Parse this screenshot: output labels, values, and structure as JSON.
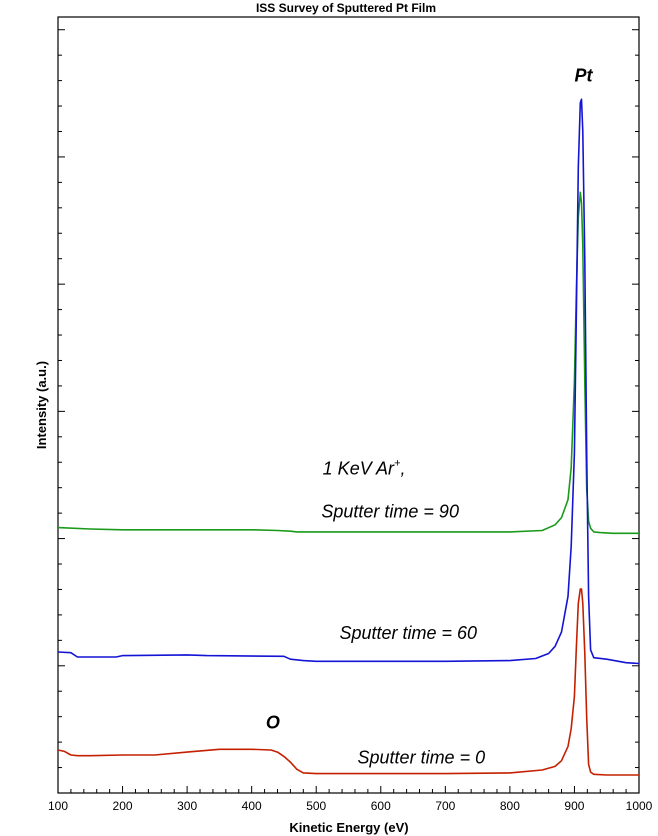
{
  "chart_data": {
    "type": "line",
    "title": "ISS Survey of Sputtered Pt Film",
    "xlabel": "Kinetic Energy (eV)",
    "ylabel": "Intensity (a.u.)",
    "xlim": [
      100,
      1000
    ],
    "ylim": [
      0,
      100
    ],
    "xticks": [
      "100",
      "200",
      "300",
      "400",
      "500",
      "600",
      "700",
      "800",
      "900",
      "1000"
    ],
    "grid": false,
    "series": [
      {
        "color": "#1a9a1a",
        "x": [
          100,
          150,
          200,
          300,
          400,
          440,
          460,
          470,
          480,
          600,
          700,
          800,
          850,
          870,
          880,
          890,
          895,
          900,
          903,
          906,
          909,
          911,
          913,
          916,
          919,
          922,
          925,
          930,
          940,
          960,
          1000
        ],
        "y": [
          34.6,
          34.4,
          34.3,
          34.3,
          34.3,
          34.2,
          34.1,
          34.0,
          34.0,
          34.0,
          34.0,
          34.0,
          34.2,
          35.0,
          36.0,
          38.5,
          43.0,
          55.0,
          68.0,
          78.0,
          81.5,
          80.0,
          74.0,
          55.0,
          40.0,
          35.5,
          34.5,
          34.0,
          33.9,
          33.8,
          33.8
        ]
      },
      {
        "color": "#1414d4",
        "x": [
          100,
          120,
          130,
          190,
          200,
          300,
          330,
          450,
          460,
          480,
          500,
          600,
          700,
          800,
          840,
          860,
          870,
          880,
          890,
          895,
          900,
          903,
          906,
          909,
          911,
          913,
          916,
          919,
          922,
          925,
          930,
          950,
          980,
          1000
        ],
        "y": [
          17.2,
          17.1,
          16.5,
          16.5,
          16.7,
          16.8,
          16.7,
          16.6,
          16.2,
          16.0,
          15.9,
          15.9,
          15.9,
          16.0,
          16.3,
          17.0,
          18.0,
          20.0,
          25.0,
          32.0,
          45.0,
          65.0,
          85.0,
          94.0,
          94.5,
          90.0,
          72.0,
          45.0,
          25.0,
          17.5,
          16.4,
          16.2,
          15.7,
          15.6
        ]
      },
      {
        "color": "#c42000",
        "x": [
          100,
          110,
          120,
          130,
          150,
          200,
          250,
          300,
          350,
          400,
          430,
          440,
          450,
          460,
          470,
          480,
          500,
          600,
          700,
          800,
          850,
          870,
          880,
          890,
          895,
          900,
          903,
          906,
          909,
          911,
          913,
          916,
          919,
          922,
          925,
          930,
          950,
          1000
        ],
        "y": [
          3.5,
          3.3,
          2.8,
          2.7,
          2.7,
          2.8,
          2.8,
          3.2,
          3.6,
          3.6,
          3.5,
          3.2,
          2.6,
          1.8,
          0.8,
          0.3,
          0.2,
          0.2,
          0.2,
          0.3,
          0.7,
          1.2,
          2.0,
          4.0,
          6.5,
          11.0,
          18.0,
          24.0,
          26.0,
          26.0,
          24.0,
          17.0,
          8.0,
          1.5,
          0.4,
          0.1,
          0.0,
          0.0
        ]
      }
    ],
    "annotations": [
      {
        "text": "Pt",
        "bold": true,
        "x": 900,
        "y": 97.0
      },
      {
        "text": "1 KeV Ar",
        "superscript": "+",
        "suffix": ",",
        "bold": false,
        "x": 510,
        "y": 42.0
      },
      {
        "text": "Sputter time = 90",
        "bold": false,
        "x": 508,
        "y": 36.0
      },
      {
        "text": "Sputter time = 60",
        "bold": false,
        "x": 536,
        "y": 19.0
      },
      {
        "text": "O",
        "bold": true,
        "x": 422,
        "y": 6.5
      },
      {
        "text": "Sputter time = 0",
        "bold": false,
        "x": 564,
        "y": 1.6
      }
    ]
  }
}
